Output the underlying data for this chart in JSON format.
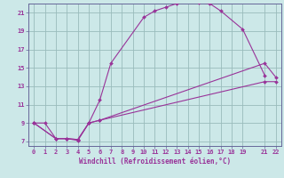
{
  "xlabel": "Windchill (Refroidissement éolien,°C)",
  "bg_color": "#cce8e8",
  "grid_color": "#99bbbb",
  "line_color": "#993399",
  "axis_color": "#666699",
  "xlim": [
    -0.5,
    22.5
  ],
  "ylim": [
    6.5,
    22.0
  ],
  "xticks": [
    0,
    1,
    2,
    3,
    4,
    5,
    6,
    7,
    8,
    9,
    10,
    11,
    12,
    13,
    14,
    15,
    16,
    17,
    18,
    19,
    21,
    22
  ],
  "yticks": [
    7,
    9,
    11,
    13,
    15,
    17,
    19,
    21
  ],
  "curve1_x": [
    0,
    1,
    2,
    3,
    4,
    5,
    6,
    7,
    10,
    11,
    12,
    13,
    14,
    15,
    16,
    17,
    19,
    21
  ],
  "curve1_y": [
    9,
    9,
    7.3,
    7.3,
    7.1,
    9.0,
    11.5,
    15.5,
    20.5,
    21.2,
    21.6,
    22.0,
    22.3,
    22.1,
    22.0,
    21.2,
    19.2,
    14.2
  ],
  "curve2_x": [
    0,
    2,
    3,
    4,
    5,
    6,
    21,
    22
  ],
  "curve2_y": [
    9,
    7.3,
    7.3,
    7.2,
    9.0,
    9.3,
    15.5,
    14.0
  ],
  "curve3_x": [
    0,
    2,
    3,
    4,
    5,
    6,
    21,
    22
  ],
  "curve3_y": [
    9,
    7.3,
    7.3,
    7.2,
    9.0,
    9.3,
    13.5,
    13.5
  ],
  "tick_fontsize": 5.0,
  "xlabel_fontsize": 5.5,
  "lw": 0.8,
  "ms": 2.0
}
